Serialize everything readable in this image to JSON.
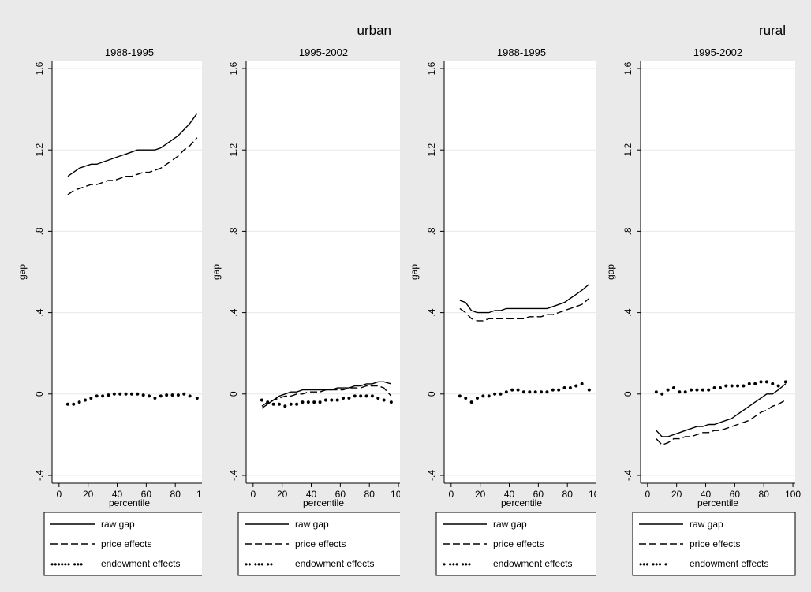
{
  "chart_data": {
    "type": "line",
    "groups": [
      {
        "title": "urban",
        "panels": [
          0,
          1
        ]
      },
      {
        "title": "rural",
        "panels": [
          2,
          3
        ]
      }
    ],
    "xlabel": "percentile",
    "ylabel": "gap",
    "xlim": [
      0,
      100
    ],
    "ylim": [
      -0.4,
      1.6
    ],
    "xticks": [
      0,
      20,
      40,
      60,
      80,
      100
    ],
    "xtick_labels": [
      "0",
      "20",
      "40",
      "60",
      "80",
      "100"
    ],
    "yticks": [
      -0.4,
      0,
      0.4,
      0.8,
      1.2,
      1.6
    ],
    "ytick_labels": [
      "-.4",
      "0",
      ".4",
      ".8",
      "1.2",
      "1.6"
    ],
    "grid": true,
    "legend_position": "bottom",
    "panels": [
      {
        "title": "1988-1995",
        "legend_endowment_pattern": "•••••• •••",
        "series": [
          {
            "name": "raw gap",
            "style": "solid",
            "x": [
              6,
              10,
              14,
              18,
              22,
              26,
              30,
              34,
              38,
              42,
              46,
              50,
              54,
              58,
              62,
              66,
              70,
              74,
              78,
              82,
              86,
              90,
              95
            ],
            "y": [
              1.07,
              1.09,
              1.11,
              1.12,
              1.13,
              1.13,
              1.14,
              1.15,
              1.16,
              1.17,
              1.18,
              1.19,
              1.2,
              1.2,
              1.2,
              1.2,
              1.21,
              1.23,
              1.25,
              1.27,
              1.3,
              1.33,
              1.38
            ]
          },
          {
            "name": "price effects",
            "style": "dashed",
            "x": [
              6,
              10,
              14,
              18,
              22,
              26,
              30,
              34,
              38,
              42,
              46,
              50,
              54,
              58,
              62,
              66,
              70,
              74,
              78,
              82,
              86,
              90,
              95
            ],
            "y": [
              0.98,
              1.0,
              1.01,
              1.02,
              1.03,
              1.03,
              1.04,
              1.05,
              1.05,
              1.06,
              1.07,
              1.07,
              1.08,
              1.09,
              1.09,
              1.1,
              1.11,
              1.13,
              1.15,
              1.17,
              1.2,
              1.22,
              1.26
            ]
          },
          {
            "name": "endowment effects",
            "style": "dotted",
            "x": [
              6,
              10,
              14,
              18,
              22,
              26,
              30,
              34,
              38,
              42,
              46,
              50,
              54,
              58,
              62,
              66,
              70,
              74,
              78,
              82,
              86,
              90,
              95
            ],
            "y": [
              -0.05,
              -0.05,
              -0.04,
              -0.03,
              -0.02,
              -0.01,
              -0.01,
              -0.005,
              0,
              0,
              0,
              0,
              0,
              -0.005,
              -0.01,
              -0.02,
              -0.01,
              -0.005,
              -0.005,
              -0.005,
              0,
              -0.01,
              -0.02
            ]
          }
        ]
      },
      {
        "title": "1995-2002",
        "legend_endowment_pattern": "•• ••• ••",
        "series": [
          {
            "name": "raw gap",
            "style": "solid",
            "x": [
              6,
              10,
              14,
              18,
              22,
              26,
              30,
              34,
              38,
              42,
              46,
              50,
              54,
              58,
              62,
              66,
              70,
              74,
              78,
              82,
              86,
              90,
              95
            ],
            "y": [
              -0.07,
              -0.05,
              -0.03,
              -0.01,
              0.0,
              0.01,
              0.01,
              0.02,
              0.02,
              0.02,
              0.02,
              0.02,
              0.02,
              0.03,
              0.03,
              0.03,
              0.04,
              0.04,
              0.05,
              0.05,
              0.06,
              0.06,
              0.05
            ]
          },
          {
            "name": "price effects",
            "style": "dashed",
            "x": [
              6,
              10,
              14,
              18,
              22,
              26,
              30,
              34,
              38,
              42,
              46,
              50,
              54,
              58,
              62,
              66,
              70,
              74,
              78,
              82,
              86,
              90,
              95
            ],
            "y": [
              -0.06,
              -0.04,
              -0.03,
              -0.02,
              -0.01,
              -0.01,
              0.0,
              0.0,
              0.01,
              0.01,
              0.01,
              0.02,
              0.02,
              0.02,
              0.02,
              0.03,
              0.03,
              0.03,
              0.04,
              0.04,
              0.04,
              0.03,
              -0.01
            ]
          },
          {
            "name": "endowment effects",
            "style": "dotted",
            "x": [
              6,
              10,
              14,
              18,
              22,
              26,
              30,
              34,
              38,
              42,
              46,
              50,
              54,
              58,
              62,
              66,
              70,
              74,
              78,
              82,
              86,
              90,
              95
            ],
            "y": [
              -0.03,
              -0.04,
              -0.05,
              -0.05,
              -0.06,
              -0.05,
              -0.05,
              -0.04,
              -0.04,
              -0.04,
              -0.04,
              -0.03,
              -0.03,
              -0.03,
              -0.02,
              -0.02,
              -0.01,
              -0.01,
              -0.01,
              -0.01,
              -0.02,
              -0.03,
              -0.04
            ]
          }
        ]
      },
      {
        "title": "1988-1995",
        "legend_endowment_pattern": "• ••• •••",
        "series": [
          {
            "name": "raw gap",
            "style": "solid",
            "x": [
              6,
              10,
              14,
              18,
              22,
              26,
              30,
              34,
              38,
              42,
              46,
              50,
              54,
              58,
              62,
              66,
              70,
              74,
              78,
              82,
              86,
              90,
              95
            ],
            "y": [
              0.46,
              0.45,
              0.41,
              0.4,
              0.4,
              0.4,
              0.41,
              0.41,
              0.42,
              0.42,
              0.42,
              0.42,
              0.42,
              0.42,
              0.42,
              0.42,
              0.43,
              0.44,
              0.45,
              0.47,
              0.49,
              0.51,
              0.54
            ]
          },
          {
            "name": "price effects",
            "style": "dashed",
            "x": [
              6,
              10,
              14,
              18,
              22,
              26,
              30,
              34,
              38,
              42,
              46,
              50,
              54,
              58,
              62,
              66,
              70,
              74,
              78,
              82,
              86,
              90,
              95
            ],
            "y": [
              0.42,
              0.4,
              0.37,
              0.36,
              0.36,
              0.37,
              0.37,
              0.37,
              0.37,
              0.37,
              0.37,
              0.37,
              0.38,
              0.38,
              0.38,
              0.39,
              0.39,
              0.4,
              0.41,
              0.42,
              0.43,
              0.44,
              0.47
            ]
          },
          {
            "name": "endowment effects",
            "style": "dotted",
            "x": [
              6,
              10,
              14,
              18,
              22,
              26,
              30,
              34,
              38,
              42,
              46,
              50,
              54,
              58,
              62,
              66,
              70,
              74,
              78,
              82,
              86,
              90,
              95
            ],
            "y": [
              -0.01,
              -0.02,
              -0.04,
              -0.02,
              -0.01,
              -0.01,
              0.0,
              0.0,
              0.01,
              0.02,
              0.02,
              0.01,
              0.01,
              0.01,
              0.01,
              0.01,
              0.02,
              0.02,
              0.03,
              0.03,
              0.04,
              0.05,
              0.02
            ]
          }
        ]
      },
      {
        "title": "1995-2002",
        "legend_endowment_pattern": "••• ••• •",
        "series": [
          {
            "name": "raw gap",
            "style": "solid",
            "x": [
              6,
              10,
              14,
              18,
              22,
              26,
              30,
              34,
              38,
              42,
              46,
              50,
              54,
              58,
              62,
              66,
              70,
              74,
              78,
              82,
              86,
              90,
              95
            ],
            "y": [
              -0.18,
              -0.21,
              -0.21,
              -0.2,
              -0.19,
              -0.18,
              -0.17,
              -0.16,
              -0.16,
              -0.15,
              -0.15,
              -0.14,
              -0.13,
              -0.12,
              -0.1,
              -0.08,
              -0.06,
              -0.04,
              -0.02,
              0.0,
              0.0,
              0.02,
              0.05
            ]
          },
          {
            "name": "price effects",
            "style": "dashed",
            "x": [
              6,
              10,
              14,
              18,
              22,
              26,
              30,
              34,
              38,
              42,
              46,
              50,
              54,
              58,
              62,
              66,
              70,
              74,
              78,
              82,
              86,
              90,
              95
            ],
            "y": [
              -0.22,
              -0.25,
              -0.24,
              -0.22,
              -0.22,
              -0.21,
              -0.21,
              -0.2,
              -0.19,
              -0.19,
              -0.18,
              -0.18,
              -0.17,
              -0.16,
              -0.15,
              -0.14,
              -0.13,
              -0.11,
              -0.09,
              -0.08,
              -0.06,
              -0.05,
              -0.03
            ]
          },
          {
            "name": "endowment effects",
            "style": "dotted",
            "x": [
              6,
              10,
              14,
              18,
              22,
              26,
              30,
              34,
              38,
              42,
              46,
              50,
              54,
              58,
              62,
              66,
              70,
              74,
              78,
              82,
              86,
              90,
              95
            ],
            "y": [
              0.01,
              0.0,
              0.02,
              0.03,
              0.01,
              0.01,
              0.02,
              0.02,
              0.02,
              0.02,
              0.03,
              0.03,
              0.04,
              0.04,
              0.04,
              0.04,
              0.05,
              0.05,
              0.06,
              0.06,
              0.05,
              0.04,
              0.06
            ]
          }
        ]
      }
    ]
  }
}
